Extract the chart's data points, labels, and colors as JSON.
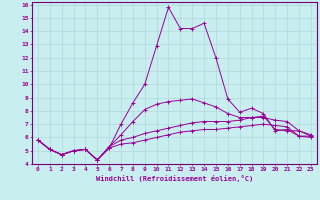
{
  "xlabel": "Windchill (Refroidissement éolien,°C)",
  "background_color": "#c8eef0",
  "grid_color": "#b0d8da",
  "line_color": "#990099",
  "spine_color": "#770077",
  "xlim": [
    -0.5,
    23.5
  ],
  "ylim": [
    4,
    16.2
  ],
  "xticks": [
    0,
    1,
    2,
    3,
    4,
    5,
    6,
    7,
    8,
    9,
    10,
    11,
    12,
    13,
    14,
    15,
    16,
    17,
    18,
    19,
    20,
    21,
    22,
    23
  ],
  "yticks": [
    4,
    5,
    6,
    7,
    8,
    9,
    10,
    11,
    12,
    13,
    14,
    15,
    16
  ],
  "series": [
    [
      5.8,
      5.1,
      4.7,
      5.0,
      5.1,
      4.3,
      5.2,
      7.0,
      8.6,
      10.0,
      12.9,
      15.8,
      14.2,
      14.2,
      14.6,
      12.0,
      8.9,
      7.9,
      8.2,
      7.8,
      6.5,
      6.6,
      6.1,
      6.1
    ],
    [
      5.8,
      5.1,
      4.7,
      5.0,
      5.1,
      4.3,
      5.3,
      6.2,
      7.2,
      8.1,
      8.5,
      8.7,
      8.8,
      8.9,
      8.6,
      8.3,
      7.8,
      7.5,
      7.5,
      7.6,
      6.6,
      6.5,
      6.5,
      6.1
    ],
    [
      5.8,
      5.1,
      4.7,
      5.0,
      5.1,
      4.3,
      5.3,
      5.8,
      6.0,
      6.3,
      6.5,
      6.7,
      6.9,
      7.1,
      7.2,
      7.2,
      7.2,
      7.3,
      7.5,
      7.5,
      7.3,
      7.2,
      6.5,
      6.2
    ],
    [
      5.8,
      5.1,
      4.7,
      5.0,
      5.1,
      4.3,
      5.2,
      5.5,
      5.6,
      5.8,
      6.0,
      6.2,
      6.4,
      6.5,
      6.6,
      6.6,
      6.7,
      6.8,
      6.9,
      7.0,
      6.9,
      6.8,
      6.1,
      6.0
    ]
  ]
}
